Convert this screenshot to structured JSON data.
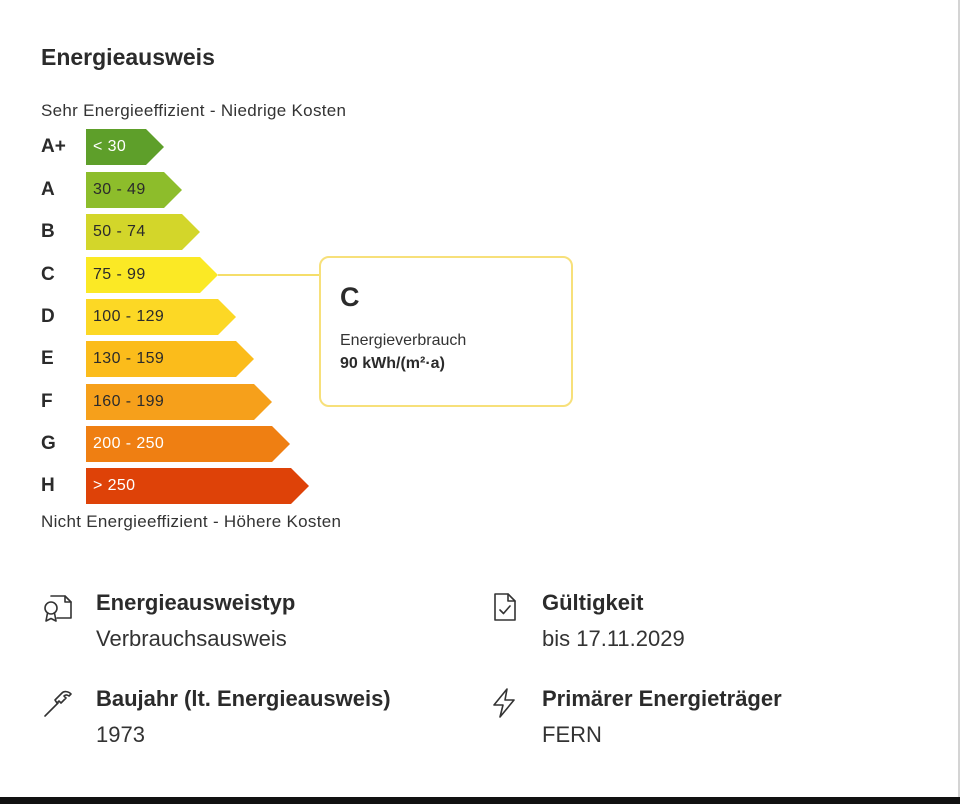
{
  "section": {
    "title": "Energieausweis",
    "scale_top_caption": "Sehr Energieeffizient - Niedrige Kosten",
    "scale_bottom_caption": "Nicht Energieeffizient - Höhere Kosten"
  },
  "ratings": [
    {
      "letter": "A+",
      "range": "< 30",
      "color": "#5e9f2a",
      "text_color": "#ffffff"
    },
    {
      "letter": "A",
      "range": "30 - 49",
      "color": "#8dbd2b",
      "text_color": "#2b2b2b"
    },
    {
      "letter": "B",
      "range": "50 - 74",
      "color": "#d3d62a",
      "text_color": "#2b2b2b"
    },
    {
      "letter": "C",
      "range": "75 - 99",
      "color": "#fbe925",
      "text_color": "#2b2b2b"
    },
    {
      "letter": "D",
      "range": "100 - 129",
      "color": "#fcd825",
      "text_color": "#2b2b2b"
    },
    {
      "letter": "E",
      "range": "130 - 159",
      "color": "#fbbc1b",
      "text_color": "#2b2b2b"
    },
    {
      "letter": "F",
      "range": "160 - 199",
      "color": "#f6a01b",
      "text_color": "#2b2b2b"
    },
    {
      "letter": "G",
      "range": "200 - 250",
      "color": "#ef7f12",
      "text_color": "#ffffff"
    },
    {
      "letter": "H",
      "range": "> 250",
      "color": "#de4208",
      "text_color": "#ffffff"
    }
  ],
  "current_rating": {
    "letter": "C",
    "label": "Energieverbrauch",
    "value": "90 kWh/(m²·a)",
    "highlight_color": "#f7e07a"
  },
  "details": {
    "type": {
      "icon": "certificate-icon",
      "label": "Energieausweistyp",
      "value": "Verbrauchsausweis"
    },
    "validity": {
      "icon": "document-check-icon",
      "label": "Gültigkeit",
      "value": "bis 17.11.2029"
    },
    "year": {
      "icon": "hammer-icon",
      "label": "Baujahr (lt. Energieausweis)",
      "value": "1973"
    },
    "carrier": {
      "icon": "lightning-icon",
      "label": "Primärer Energieträger",
      "value": "FERN"
    }
  }
}
